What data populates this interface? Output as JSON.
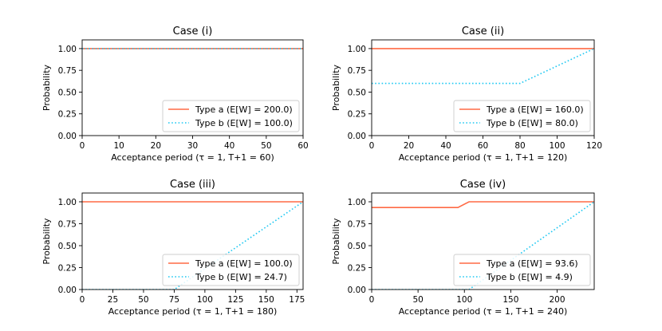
{
  "colors": {
    "type_a": "#ff6a45",
    "type_b": "#1ec8f2",
    "legend_border": "#cccccc",
    "axis": "#000000"
  },
  "chart_data": [
    {
      "type": "line",
      "title": "Case (i)",
      "xlabel": "Acceptance period (τ = 1, T+1 = 60)",
      "ylabel": "Probability",
      "xlim": [
        0,
        60
      ],
      "ylim": [
        0,
        1.1
      ],
      "xticks": [
        0,
        10,
        20,
        30,
        40,
        50,
        60
      ],
      "yticks": [
        "0.00",
        "0.25",
        "0.50",
        "0.75",
        "1.00"
      ],
      "legend_position": "lower-right",
      "series": [
        {
          "name": "Type a (E[W] = 200.0)",
          "style": "solid",
          "x": [
            0,
            60
          ],
          "y": [
            1.0,
            1.0
          ]
        },
        {
          "name": "Type b (E[W] = 100.0)",
          "style": "dotted",
          "x": [
            0,
            60
          ],
          "y": [
            1.0,
            1.0
          ]
        }
      ]
    },
    {
      "type": "line",
      "title": "Case (ii)",
      "xlabel": "Acceptance period (τ = 1, T+1 = 120)",
      "ylabel": "Probability",
      "xlim": [
        0,
        120
      ],
      "ylim": [
        0,
        1.1
      ],
      "xticks": [
        0,
        20,
        40,
        60,
        80,
        100,
        120
      ],
      "yticks": [
        "0.00",
        "0.25",
        "0.50",
        "0.75",
        "1.00"
      ],
      "legend_position": "lower-right",
      "series": [
        {
          "name": "Type a (E[W] = 160.0)",
          "style": "solid",
          "x": [
            0,
            120
          ],
          "y": [
            1.0,
            1.0
          ]
        },
        {
          "name": "Type b (E[W] = 80.0)",
          "style": "dotted",
          "x": [
            0,
            80,
            120
          ],
          "y": [
            0.6,
            0.6,
            1.0
          ]
        }
      ]
    },
    {
      "type": "line",
      "title": "Case (iii)",
      "xlabel": "Acceptance period (τ = 1, T+1 = 180)",
      "ylabel": "Probability",
      "xlim": [
        0,
        180
      ],
      "ylim": [
        0,
        1.1
      ],
      "xticks": [
        0,
        25,
        50,
        75,
        100,
        125,
        150,
        175
      ],
      "yticks": [
        "0.00",
        "0.25",
        "0.50",
        "0.75",
        "1.00"
      ],
      "legend_position": "lower-right",
      "series": [
        {
          "name": "Type a (E[W] = 100.0)",
          "style": "solid",
          "x": [
            0,
            180
          ],
          "y": [
            1.0,
            1.0
          ]
        },
        {
          "name": "Type b (E[W] = 24.7)",
          "style": "dotted",
          "x": [
            0,
            75,
            180
          ],
          "y": [
            0.0,
            0.0,
            1.0
          ]
        }
      ]
    },
    {
      "type": "line",
      "title": "Case (iv)",
      "xlabel": "Acceptance period (τ = 1, T+1 = 240)",
      "ylabel": "Probability",
      "xlim": [
        0,
        240
      ],
      "ylim": [
        0,
        1.1
      ],
      "xticks": [
        0,
        50,
        100,
        150,
        200
      ],
      "yticks": [
        "0.00",
        "0.25",
        "0.50",
        "0.75",
        "1.00"
      ],
      "legend_position": "lower-right",
      "series": [
        {
          "name": "Type a (E[W] = 93.6)",
          "style": "solid",
          "x": [
            0,
            93,
            105,
            240
          ],
          "y": [
            0.935,
            0.935,
            1.0,
            1.0
          ]
        },
        {
          "name": "Type b (E[W] = 4.9)",
          "style": "dotted",
          "x": [
            0,
            105,
            240
          ],
          "y": [
            0.0,
            0.0,
            1.0
          ]
        }
      ]
    }
  ]
}
